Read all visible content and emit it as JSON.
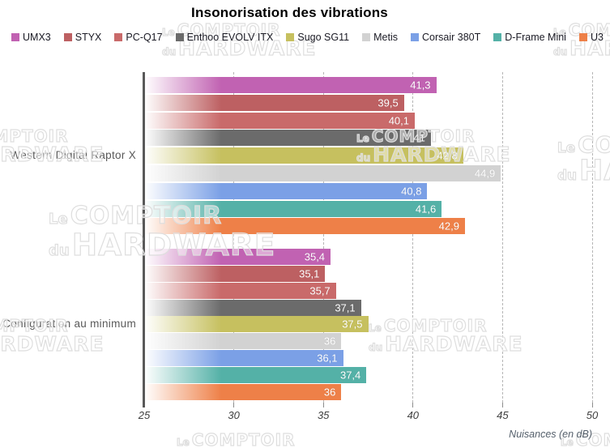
{
  "watermark": {
    "le": "Le",
    "comptoir": "COMPTOIR",
    "du": "du",
    "hardware": "HARDWARE"
  },
  "chart_data": {
    "type": "bar",
    "orientation": "horizontal",
    "title": "Insonorisation des vibrations",
    "xlabel": "Nuisances (en dB)",
    "xlim": [
      25,
      50
    ],
    "xticks": [
      25,
      30,
      35,
      40,
      45,
      50
    ],
    "grid": "dashed-vertical",
    "legend_position": "top",
    "categories": [
      "Western Digital Raptor X",
      "Configuration au minimum"
    ],
    "series": [
      {
        "name": "UMX3",
        "color": "#c162b2",
        "values": [
          41.3,
          35.4
        ],
        "labels": [
          "41,3",
          "35,4"
        ]
      },
      {
        "name": "STYX",
        "color": "#bd6062",
        "values": [
          39.5,
          35.1
        ],
        "labels": [
          "39,5",
          "35,1"
        ]
      },
      {
        "name": "PC-Q17",
        "color": "#c96a6a",
        "values": [
          40.1,
          35.7
        ],
        "labels": [
          "40,1",
          "35,7"
        ]
      },
      {
        "name": "Enthoo EVOLV ITX",
        "color": "#6b6b6b",
        "values": [
          41,
          37.1
        ],
        "labels": [
          "41",
          "37,1"
        ]
      },
      {
        "name": "Sugo SG11",
        "color": "#c6c05f",
        "values": [
          42.8,
          37.5
        ],
        "labels": [
          "42,8",
          "37,5"
        ]
      },
      {
        "name": "Metis",
        "color": "#d2d2d2",
        "values": [
          44.9,
          36
        ],
        "labels": [
          "44,9",
          "36"
        ]
      },
      {
        "name": "Corsair 380T",
        "color": "#7ba0e6",
        "values": [
          40.8,
          36.1
        ],
        "labels": [
          "40,8",
          "36,1"
        ]
      },
      {
        "name": "D-Frame Mini",
        "color": "#54b1a7",
        "values": [
          41.6,
          37.4
        ],
        "labels": [
          "41,6",
          "37,4"
        ]
      },
      {
        "name": "U3",
        "color": "#ee8048",
        "values": [
          42.9,
          36
        ],
        "labels": [
          "42,9",
          "36"
        ]
      }
    ]
  }
}
